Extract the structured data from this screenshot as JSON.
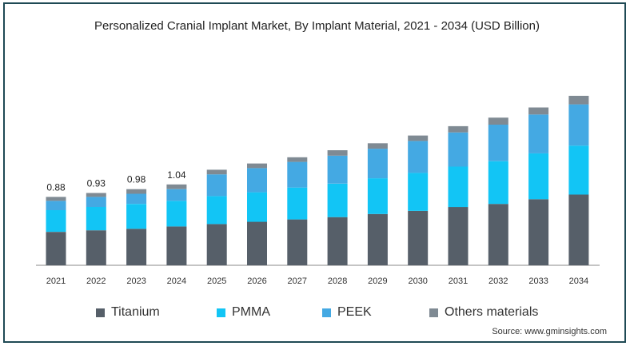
{
  "chart_data": {
    "type": "bar",
    "stacked": true,
    "title": "Personalized Cranial Implant Market, By Implant Material, 2021 - 2034 (USD Billion)",
    "xlabel": "",
    "ylabel": "",
    "ylim": [
      0,
      2.2
    ],
    "grid": false,
    "legend_position": "bottom",
    "categories": [
      "2021",
      "2022",
      "2023",
      "2024",
      "2025",
      "2026",
      "2027",
      "2028",
      "2029",
      "2030",
      "2031",
      "2032",
      "2033",
      "2034"
    ],
    "series": [
      {
        "name": "Titanium",
        "color": "#565f69",
        "values": [
          0.43,
          0.45,
          0.47,
          0.5,
          0.53,
          0.56,
          0.59,
          0.62,
          0.66,
          0.7,
          0.75,
          0.79,
          0.85,
          0.91
        ]
      },
      {
        "name": "PMMA",
        "color": "#12c5f5",
        "values": [
          0.28,
          0.3,
          0.32,
          0.33,
          0.36,
          0.38,
          0.41,
          0.43,
          0.46,
          0.49,
          0.52,
          0.55,
          0.59,
          0.63
        ]
      },
      {
        "name": "PEEK",
        "color": "#44a9e3",
        "values": [
          0.12,
          0.13,
          0.13,
          0.15,
          0.28,
          0.31,
          0.33,
          0.36,
          0.38,
          0.41,
          0.44,
          0.47,
          0.5,
          0.53
        ]
      },
      {
        "name": "Others materials",
        "color": "#7f8a93",
        "values": [
          0.05,
          0.05,
          0.06,
          0.06,
          0.06,
          0.06,
          0.06,
          0.07,
          0.07,
          0.07,
          0.08,
          0.09,
          0.09,
          0.11
        ]
      }
    ],
    "totals": [
      "0.88",
      "0.93",
      "0.98",
      "1.04",
      "",
      "",
      "",
      "",
      "",
      "",
      "",
      "",
      "",
      ""
    ]
  },
  "source": "Source: www.gminsights.com",
  "colors": {
    "frame": "#1f4a55",
    "axis": "#888888"
  }
}
